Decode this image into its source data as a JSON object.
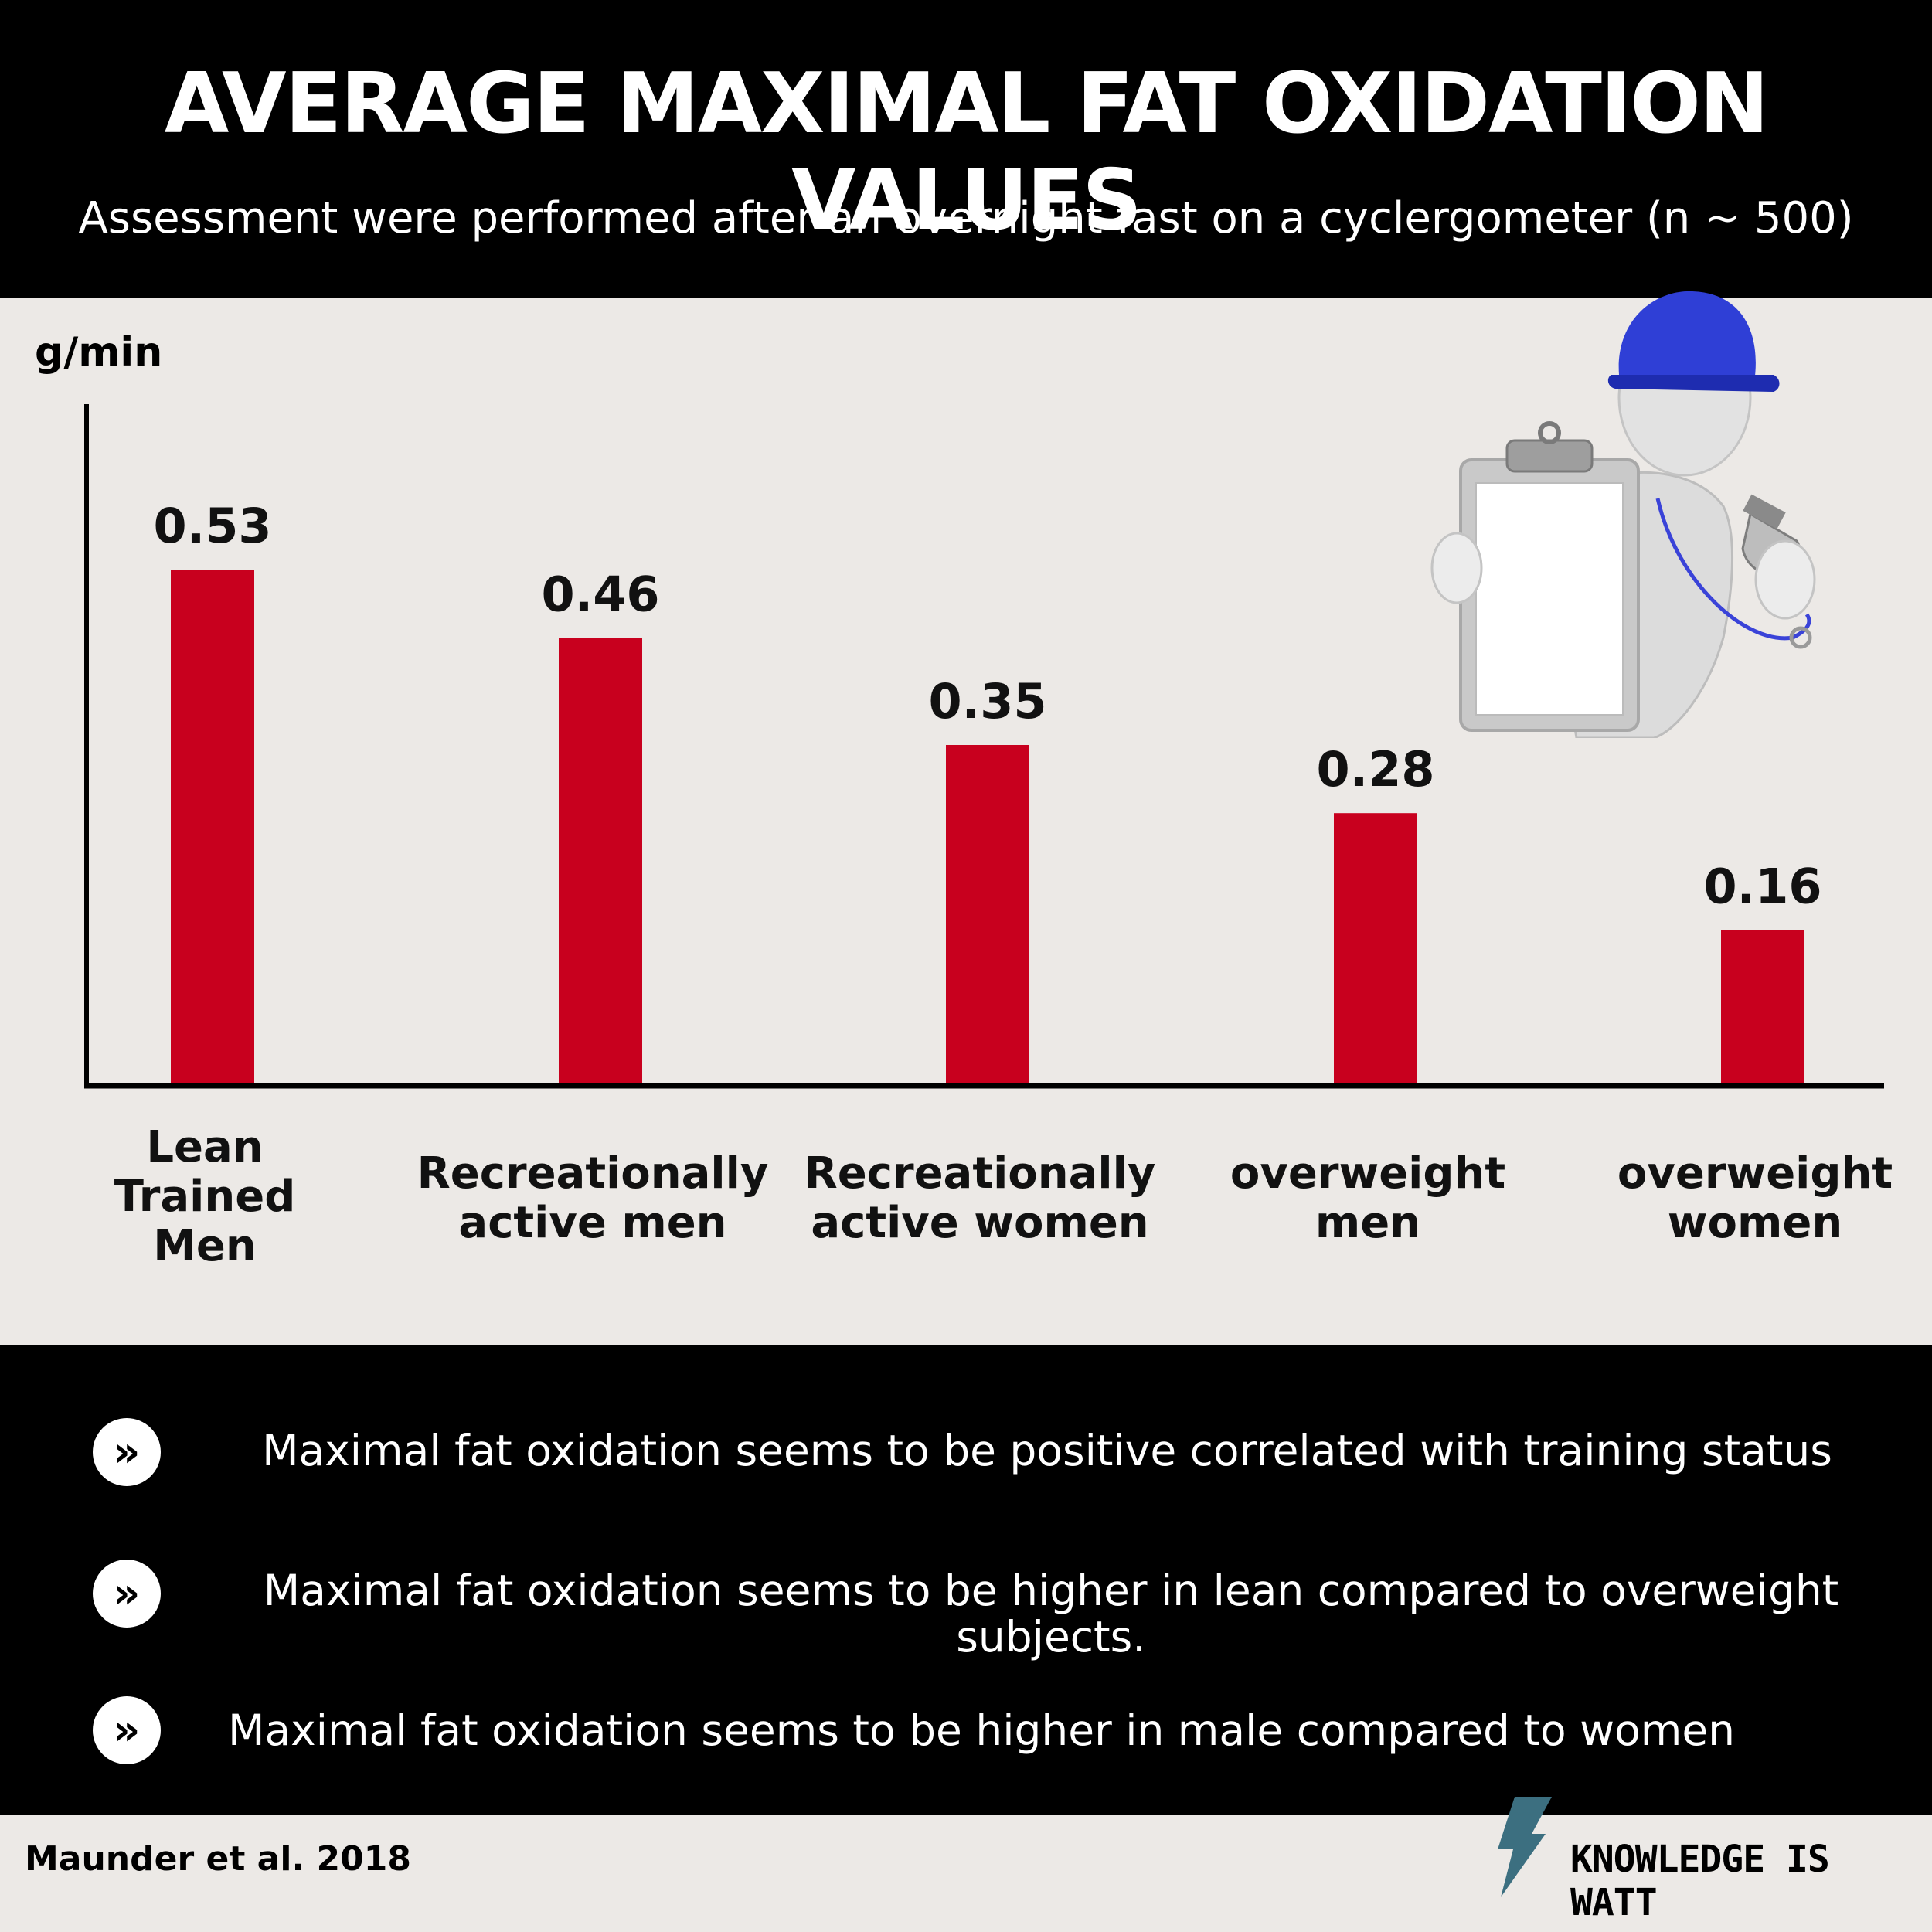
{
  "header": {
    "title": "AVERAGE MAXIMAL FAT OXIDATION VALUES",
    "subtitle": "Assessment were performed after an overnight fast on a cyclergometer (n ~ 500)"
  },
  "chart_data": {
    "type": "bar",
    "ylabel": "g/min",
    "categories": [
      [
        "Lean",
        "Trained",
        "Men"
      ],
      [
        "Recreationally",
        "active men"
      ],
      [
        "Recreationally",
        "active women"
      ],
      [
        "overweight",
        "men"
      ],
      [
        "overweight",
        "women"
      ]
    ],
    "values": [
      0.53,
      0.46,
      0.35,
      0.28,
      0.16
    ],
    "value_labels": [
      "0.53",
      "0.46",
      "0.35",
      "0.28",
      "0.16"
    ],
    "ylim": [
      0,
      0.7
    ],
    "grid": false,
    "bar_color": "#c8001e"
  },
  "bullets": [
    {
      "icon": "double-chevron-right-icon",
      "text": "Maximal fat oxidation seems to be positive correlated with training status"
    },
    {
      "icon": "double-chevron-right-icon",
      "text": "Maximal fat oxidation seems to be higher in lean compared to overweight subjects."
    },
    {
      "icon": "double-chevron-right-icon",
      "text": "Maximal fat oxidation seems to be higher in male compared  to  women"
    }
  ],
  "footer": {
    "citation": "Maunder et al. 2018",
    "logo_text": "KNOWLEDGE IS WATT",
    "logo_icon": "lightning-bolt-icon",
    "logo_color": "#3c6f80"
  },
  "colors": {
    "background": "#ece9e6",
    "header_bg": "#000000",
    "accent": "#c8001e",
    "cap": "#2f3fd6"
  }
}
